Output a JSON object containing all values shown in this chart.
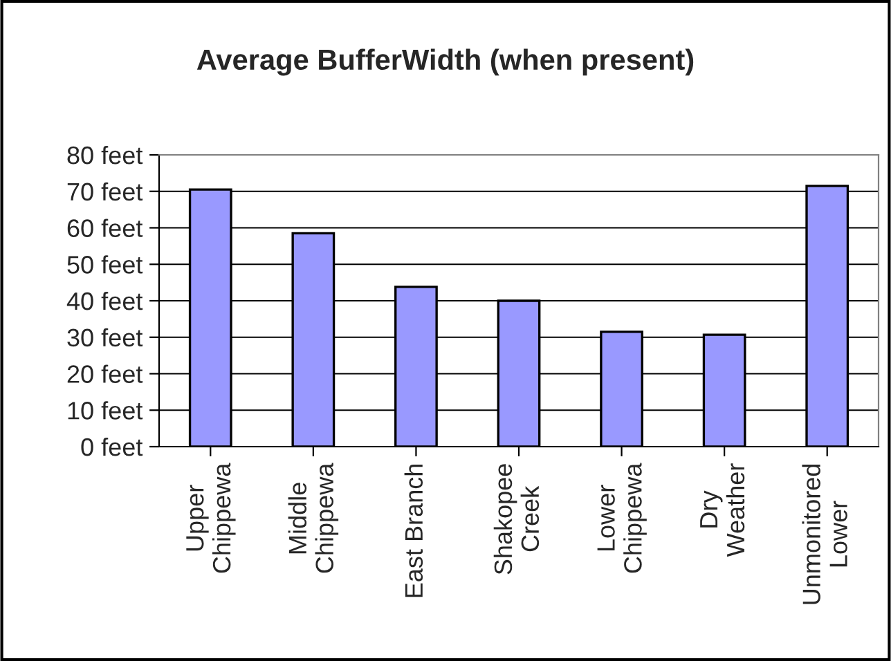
{
  "chart_data": {
    "type": "bar",
    "title": "Average BufferWidth (when present)",
    "categories": [
      "Upper\nChippewa",
      "Middle\nChippewa",
      "East Branch",
      "Shakopee\nCreek",
      "Lower\nChippewa",
      "Dry\nWeather",
      "Unmonitored\nLower"
    ],
    "values": [
      70.5,
      58.5,
      43.8,
      40,
      31.5,
      30.7,
      71.5
    ],
    "color": "#9999ff",
    "ylim": [
      0,
      80
    ],
    "yticks": [
      {
        "value": 0,
        "label": "0 feet"
      },
      {
        "value": 10,
        "label": "10 feet"
      },
      {
        "value": 20,
        "label": "20 feet"
      },
      {
        "value": 30,
        "label": "30 feet"
      },
      {
        "value": 40,
        "label": "40 feet"
      },
      {
        "value": 50,
        "label": "50 feet"
      },
      {
        "value": 60,
        "label": "60 feet"
      },
      {
        "value": 70,
        "label": "70 feet"
      },
      {
        "value": 80,
        "label": "80 feet"
      }
    ],
    "grid": "y",
    "legend": false
  }
}
